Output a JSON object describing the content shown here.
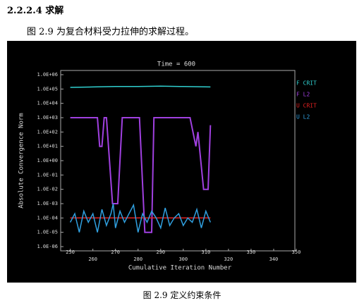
{
  "heading": "2.2.2.4 求解",
  "intro": "图 2.9 为复合材料受力拉伸的求解过程。",
  "caption": "图 2.9  定义约束条件",
  "chart_data": {
    "type": "line",
    "title": "Time = 600",
    "x_label": "Cumulative Iteration Number",
    "y_label": "Absolute Convergence Norm",
    "log_y": true,
    "xlim": [
      247,
      350
    ],
    "xticks": [
      250,
      260,
      270,
      280,
      290,
      300,
      310,
      320,
      330,
      340,
      350
    ],
    "ylim": [
      1e-06,
      1000000
    ],
    "yticks": [
      {
        "value": 1000000,
        "label": "1.0E+06"
      },
      {
        "value": 100000,
        "label": "1.0E+05"
      },
      {
        "value": 10000,
        "label": "1.0E+04"
      },
      {
        "value": 1000,
        "label": "1.0E+03"
      },
      {
        "value": 100,
        "label": "1.0E+02"
      },
      {
        "value": 10,
        "label": "1.0E+01"
      },
      {
        "value": 1,
        "label": "1.0E+00"
      },
      {
        "value": 0.1,
        "label": "1.0E-01"
      },
      {
        "value": 0.01,
        "label": "1.0E-02"
      },
      {
        "value": 0.001,
        "label": "1.0E-03"
      },
      {
        "value": 0.0001,
        "label": "1.0E-04"
      },
      {
        "value": 1e-05,
        "label": "1.0E-05"
      },
      {
        "value": 1e-06,
        "label": "1.0E-06"
      }
    ],
    "series": [
      {
        "name": "F CRIT",
        "color": "#30d0d0",
        "x": [
          250,
          260,
          270,
          280,
          290,
          300,
          312
        ],
        "values": [
          130000,
          140000,
          150000,
          150000,
          160000,
          150000,
          140000
        ]
      },
      {
        "name": "F L2",
        "color": "#a040e0",
        "x": [
          250,
          262,
          263,
          264,
          265,
          266,
          268.7,
          271,
          273,
          280.6,
          283,
          286,
          287,
          303,
          305.6,
          306.5,
          309,
          311,
          312
        ],
        "values": [
          1000,
          1000,
          10,
          10,
          1000,
          1000,
          0.001,
          0.001,
          1000,
          1000,
          1e-05,
          1e-05,
          1000,
          1000,
          10,
          100,
          0.01,
          0.01,
          300
        ]
      },
      {
        "name": "U CRIT",
        "color": "#e02020",
        "x": [
          250,
          260,
          270,
          280,
          290,
          300,
          312
        ],
        "values": [
          0.0001,
          0.0001,
          0.0001,
          0.0001,
          0.0001,
          0.0001,
          0.0001
        ]
      },
      {
        "name": "U L2",
        "color": "#30a0e0",
        "x": [
          250,
          252,
          254,
          256,
          258,
          260,
          262,
          264,
          266,
          268,
          269,
          270,
          272,
          274,
          276,
          278,
          280,
          282,
          284,
          286,
          288,
          290,
          292,
          294,
          296,
          298,
          300,
          302,
          304,
          306,
          308,
          310,
          312
        ],
        "values": [
          5e-05,
          0.0002,
          1e-05,
          0.0003,
          5e-05,
          0.0002,
          1e-05,
          0.0004,
          3e-05,
          0.0002,
          0.001,
          2e-05,
          0.0003,
          5e-05,
          0.0002,
          0.0008,
          1e-05,
          0.0002,
          5e-05,
          0.0003,
          0.0001,
          2e-05,
          0.0005,
          3e-05,
          0.0001,
          0.0002,
          3e-05,
          0.0001,
          5e-05,
          0.0004,
          2e-05,
          0.0003,
          5e-05
        ]
      }
    ]
  }
}
